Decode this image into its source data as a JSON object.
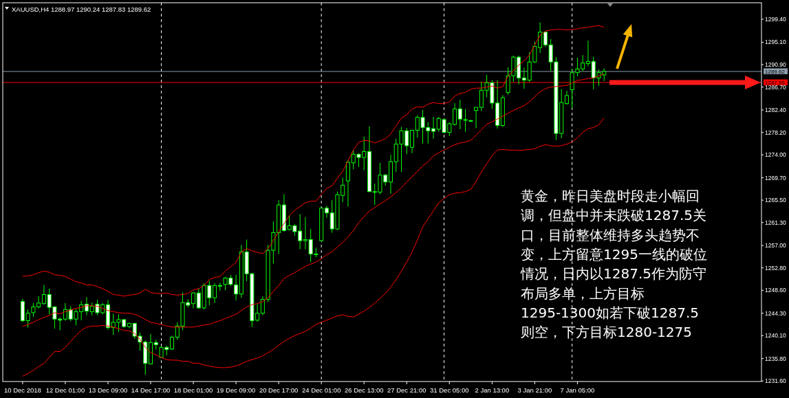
{
  "chart_data": {
    "type": "candlestick",
    "title": "XAUUSD,H4 1288.97 1290.24 1287.83 1289.62",
    "color": "#00ff00",
    "categories": [
      "10 Dec 2018",
      null,
      null,
      null,
      null,
      null,
      null,
      null,
      "12 Dec 01:00",
      null,
      null,
      null,
      null,
      null,
      null,
      null,
      "13 Dec 09:00",
      null,
      null,
      null,
      null,
      null,
      null,
      null,
      "14 Dec 17:00",
      null,
      null,
      null,
      null,
      null,
      null,
      null,
      "18 Dec 01:00",
      null,
      null,
      null,
      null,
      null,
      null,
      null,
      "19 Dec 09:00",
      null,
      null,
      null,
      null,
      null,
      null,
      null,
      "20 Dec 17:00",
      null,
      null,
      null,
      null,
      null,
      null,
      null,
      "24 Dec 01:00",
      null,
      null,
      null,
      null,
      null,
      null,
      null,
      "26 Dec 13:00",
      null,
      null,
      null,
      null,
      null,
      null,
      null,
      "27 Dec 21:00",
      null,
      null,
      null,
      null,
      null,
      null,
      null,
      "31 Dec 05:00",
      null,
      null,
      null,
      null,
      null,
      null,
      null,
      "2 Jan 13:00",
      null,
      null,
      null,
      null,
      null,
      null,
      null,
      "3 Jan 21:00",
      null,
      null,
      null,
      null,
      null,
      null,
      null,
      "7 Jan 05:00",
      null,
      null,
      null,
      null,
      null,
      null,
      null,
      null,
      null,
      null,
      null,
      null,
      null,
      null,
      null,
      null,
      null,
      null,
      null,
      null,
      null,
      null,
      null,
      null,
      null,
      null,
      null,
      null,
      null,
      null,
      null,
      null,
      null,
      null
    ],
    "ohlc": [
      [
        1246.5,
        1247.0,
        1242.6,
        1242.9
      ],
      [
        1242.9,
        1245.0,
        1241.6,
        1244.3
      ],
      [
        1244.4,
        1246.2,
        1243.6,
        1245.5
      ],
      [
        1245.5,
        1247.5,
        1245.2,
        1246.2
      ],
      [
        1246.1,
        1249.6,
        1245.9,
        1247.8
      ],
      [
        1247.8,
        1248.9,
        1244.1,
        1245.4
      ],
      [
        1245.5,
        1245.6,
        1241.4,
        1243.2
      ],
      [
        1243.2,
        1243.5,
        1241.1,
        1243.0
      ],
      [
        1243.2,
        1246.2,
        1242.9,
        1245.0
      ],
      [
        1245.0,
        1245.6,
        1242.8,
        1243.2
      ],
      [
        1243.2,
        1245.1,
        1242.0,
        1244.6
      ],
      [
        1244.6,
        1246.6,
        1243.0,
        1245.9
      ],
      [
        1246.0,
        1247.3,
        1243.9,
        1244.7
      ],
      [
        1244.6,
        1246.3,
        1243.9,
        1245.6
      ],
      [
        1246.0,
        1246.8,
        1243.9,
        1244.4
      ],
      [
        1244.4,
        1246.2,
        1244.1,
        1245.9
      ],
      [
        1245.9,
        1246.8,
        1241.2,
        1241.6
      ],
      [
        1241.6,
        1244.2,
        1240.2,
        1242.6
      ],
      [
        1242.6,
        1244.1,
        1240.8,
        1243.1
      ],
      [
        1243.1,
        1243.2,
        1241.6,
        1241.8
      ],
      [
        1241.8,
        1242.5,
        1241.5,
        1242.4
      ],
      [
        1242.4,
        1242.5,
        1239.5,
        1240.0
      ],
      [
        1240.0,
        1240.7,
        1237.3,
        1238.9
      ],
      [
        1238.9,
        1239.2,
        1232.8,
        1234.9
      ],
      [
        1234.8,
        1240.4,
        1234.7,
        1238.8
      ],
      [
        1238.8,
        1239.3,
        1237.5,
        1238.4
      ],
      [
        1236.0,
        1238.1,
        1236.0,
        1237.9
      ],
      [
        1237.9,
        1238.2,
        1236.4,
        1237.5
      ],
      [
        1237.6,
        1240.1,
        1237.4,
        1239.8
      ],
      [
        1239.8,
        1242.6,
        1239.3,
        1241.9
      ],
      [
        1241.9,
        1248.2,
        1241.1,
        1246.3
      ],
      [
        1246.3,
        1246.9,
        1245.4,
        1245.8
      ],
      [
        1246.1,
        1248.3,
        1245.2,
        1248.1
      ],
      [
        1248.1,
        1249.0,
        1245.1,
        1245.3
      ],
      [
        1245.3,
        1249.9,
        1245.0,
        1249.5
      ],
      [
        1249.5,
        1250.4,
        1245.8,
        1247.2
      ],
      [
        1247.2,
        1249.9,
        1246.2,
        1249.5
      ],
      [
        1249.5,
        1250.0,
        1248.5,
        1249.5
      ],
      [
        1249.7,
        1251.1,
        1248.6,
        1250.9
      ],
      [
        1250.9,
        1251.5,
        1249.4,
        1249.7
      ],
      [
        1249.6,
        1251.5,
        1246.7,
        1247.9
      ],
      [
        1247.9,
        1257.1,
        1247.2,
        1255.8
      ],
      [
        1255.8,
        1258.1,
        1250.3,
        1251.7
      ],
      [
        1251.7,
        1251.9,
        1241.7,
        1242.9
      ],
      [
        1243.0,
        1246.0,
        1242.7,
        1244.3
      ],
      [
        1244.3,
        1247.5,
        1243.9,
        1246.9
      ],
      [
        1246.9,
        1257.1,
        1246.4,
        1256.1
      ],
      [
        1256.1,
        1261.5,
        1253.6,
        1259.4
      ],
      [
        1259.4,
        1265.5,
        1255.4,
        1264.6
      ],
      [
        1264.6,
        1266.6,
        1259.6,
        1259.8
      ],
      [
        1260.0,
        1262.7,
        1259.8,
        1260.7
      ],
      [
        1260.7,
        1261.0,
        1258.8,
        1259.6
      ],
      [
        1259.7,
        1262.9,
        1256.3,
        1257.9
      ],
      [
        1257.9,
        1262.3,
        1256.3,
        1258.1
      ],
      [
        1258.1,
        1260.1,
        1253.9,
        1255.4
      ],
      [
        1255.4,
        1256.6,
        1254.8,
        1255.4
      ],
      [
        1257.9,
        1264.1,
        1257.8,
        1264.0
      ],
      [
        1264.0,
        1264.4,
        1262.2,
        1263.1
      ],
      [
        1263.1,
        1265.5,
        1259.4,
        1260.1
      ],
      [
        1260.1,
        1267.1,
        1259.9,
        1266.5
      ],
      [
        1266.4,
        1269.7,
        1265.1,
        1268.3
      ],
      [
        1269.1,
        1273.0,
        1264.3,
        1272.6
      ],
      [
        1272.5,
        1274.9,
        1271.3,
        1274.1
      ],
      [
        1274.1,
        1274.3,
        1271.7,
        1273.5
      ],
      [
        1273.5,
        1277.4,
        1271.1,
        1274.6
      ],
      [
        1274.6,
        1279.3,
        1267.0,
        1267.1
      ],
      [
        1267.1,
        1268.6,
        1264.6,
        1267.1
      ],
      [
        1267.0,
        1272.5,
        1266.6,
        1270.2
      ],
      [
        1270.2,
        1270.4,
        1268.2,
        1268.9
      ],
      [
        1268.9,
        1274.0,
        1266.7,
        1272.7
      ],
      [
        1272.7,
        1277.0,
        1270.8,
        1276.0
      ],
      [
        1276.0,
        1279.2,
        1270.8,
        1278.5
      ],
      [
        1278.5,
        1279.0,
        1274.1,
        1275.7
      ],
      [
        1275.4,
        1278.7,
        1274.3,
        1278.6
      ],
      [
        1278.6,
        1281.4,
        1277.2,
        1281.0
      ],
      [
        1281.0,
        1282.4,
        1276.1,
        1279.1
      ],
      [
        1279.1,
        1280.1,
        1276.1,
        1278.5
      ],
      [
        1278.9,
        1281.1,
        1277.0,
        1278.4
      ],
      [
        1278.8,
        1281.1,
        1278.3,
        1280.8
      ],
      [
        1280.6,
        1280.8,
        1278.0,
        1278.2
      ],
      [
        1278.2,
        1280.1,
        1277.5,
        1279.8
      ],
      [
        1279.7,
        1283.7,
        1279.5,
        1282.6
      ],
      [
        1282.6,
        1284.3,
        1278.8,
        1280.7
      ],
      [
        1280.6,
        1282.6,
        1278.3,
        1280.6
      ],
      [
        1280.4,
        1280.6,
        1280.2,
        1280.4
      ],
      [
        1282.3,
        1282.9,
        1279.0,
        1282.9
      ],
      [
        1282.9,
        1287.7,
        1282.2,
        1286.1
      ],
      [
        1286.1,
        1289.0,
        1284.8,
        1287.5
      ],
      [
        1287.5,
        1288.0,
        1282.6,
        1283.7
      ],
      [
        1283.7,
        1288.0,
        1278.9,
        1279.5
      ],
      [
        1279.5,
        1285.2,
        1279.2,
        1284.7
      ],
      [
        1285.7,
        1290.4,
        1285.3,
        1288.8
      ],
      [
        1288.8,
        1292.6,
        1287.7,
        1292.3
      ],
      [
        1292.3,
        1292.6,
        1287.2,
        1288.4
      ],
      [
        1288.4,
        1290.3,
        1286.4,
        1288.0
      ],
      [
        1288.0,
        1293.2,
        1287.7,
        1291.4
      ],
      [
        1291.4,
        1295.2,
        1291.2,
        1294.3
      ],
      [
        1294.1,
        1298.8,
        1293.1,
        1297.0
      ],
      [
        1297.0,
        1297.0,
        1294.2,
        1294.6
      ],
      [
        1294.6,
        1295.7,
        1289.7,
        1291.4
      ],
      [
        1291.4,
        1292.3,
        1276.8,
        1278.0
      ],
      [
        1278.0,
        1286.3,
        1277.1,
        1283.8
      ],
      [
        1283.6,
        1286.0,
        1283.4,
        1285.1
      ],
      [
        1286.2,
        1290.1,
        1282.7,
        1289.4
      ],
      [
        1289.4,
        1292.2,
        1288.7,
        1290.1
      ],
      [
        1290.1,
        1292.7,
        1289.7,
        1291.2
      ],
      [
        1291.1,
        1295.4,
        1290.6,
        1291.5
      ],
      [
        1291.5,
        1292.4,
        1286.3,
        1288.4
      ],
      [
        1288.4,
        1290.0,
        1286.9,
        1289.4
      ],
      [
        1288.97,
        1290.24,
        1287.83,
        1289.62
      ],
      null,
      null,
      null,
      null,
      null,
      null,
      null,
      null,
      null,
      null,
      null,
      null,
      null,
      null,
      null,
      null,
      null,
      null,
      null,
      null,
      null,
      null,
      null,
      null,
      null,
      null,
      null,
      null,
      null
    ],
    "series": [
      {
        "type": "line",
        "color": "#ff0000",
        "values": [
          1251.2,
          1251.3,
          1251.5,
          1251.9,
          1252.2,
          1252.0,
          1251.5,
          1251.4,
          1251.2,
          1250.7,
          1250.2,
          1250.0,
          1249.6,
          1249.6,
          1249.3,
          1248.9,
          1248.4,
          1247.8,
          1247.7,
          1247.5,
          1247.7,
          1247.8,
          1248.1,
          1248.8,
          1248.2,
          1248.0,
          1248.0,
          1248.1,
          1247.8,
          1247.7,
          1247.8,
          1248.0,
          1248.7,
          1248.9,
          1249.5,
          1250.6,
          1251.0,
          1251.2,
          1252.2,
          1253.0,
          1253.8,
          1255.8,
          1256.4,
          1256.0,
          1255.7,
          1255.5,
          1256.4,
          1257.9,
          1259.6,
          1261.1,
          1262.6,
          1263.6,
          1264.3,
          1265.0,
          1265.3,
          1265.3,
          1266.6,
          1267.7,
          1268.2,
          1269.6,
          1270.9,
          1272.9,
          1274.9,
          1276.3,
          1276.7,
          1276.6,
          1276.2,
          1276.6,
          1277.0,
          1277.9,
          1279.4,
          1280.9,
          1281.5,
          1282.6,
          1283.0,
          1282.9,
          1283.5,
          1283.8,
          1283.6,
          1283.6,
          1283.9,
          1285.0,
          1285.5,
          1285.7,
          1286.3,
          1286.5,
          1286.5,
          1286.7,
          1286.9,
          1286.5,
          1286.8,
          1288.8,
          1289.7,
          1290.8,
          1291.6,
          1292.7,
          1294.6,
          1296.4,
          1297.2,
          1297.4,
          1297.5,
          1297.5,
          1297.4,
          1297.5,
          1297.6,
          1297.8,
          1297.9,
          1298.1,
          1298.2,
          1297.9,
          null,
          null,
          null,
          null,
          null,
          null,
          null,
          null,
          null,
          null,
          null,
          null,
          null,
          null,
          null,
          null,
          null,
          null,
          null,
          null,
          null,
          null,
          null,
          null,
          null,
          null,
          null,
          null,
          null
        ]
      },
      {
        "type": "line",
        "color": "#ff0000",
        "values": [
          1241.8,
          1242.2,
          1242.6,
          1243.1,
          1243.5,
          1243.9,
          1244.4,
          1244.2,
          1244.6,
          1244.9,
          1245.2,
          1245.4,
          1245.7,
          1245.7,
          1245.6,
          1245.2,
          1244.8,
          1244.6,
          1244.4,
          1244.3,
          1244.3,
          1244.1,
          1243.7,
          1243.1,
          1242.6,
          1242.4,
          1242.2,
          1241.9,
          1241.7,
          1241.7,
          1241.7,
          1241.7,
          1241.7,
          1241.9,
          1242.1,
          1242.2,
          1242.6,
          1242.9,
          1243.3,
          1243.7,
          1244.1,
          1244.8,
          1245.5,
          1245.9,
          1246.1,
          1246.5,
          1247.2,
          1248.4,
          1249.5,
          1250.8,
          1251.4,
          1251.9,
          1252.5,
          1253.1,
          1253.5,
          1253.9,
          1254.5,
          1255.3,
          1255.8,
          1256.7,
          1257.6,
          1258.6,
          1259.8,
          1261.3,
          1262.4,
          1263.5,
          1264.1,
          1264.8,
          1265.4,
          1266.1,
          1266.9,
          1267.8,
          1268.9,
          1269.9,
          1270.9,
          1271.9,
          1272.7,
          1273.8,
          1274.4,
          1274.9,
          1275.4,
          1275.9,
          1276.2,
          1276.4,
          1276.7,
          1277.7,
          1278.7,
          1279.7,
          1280.2,
          1280.7,
          1281.2,
          1281.8,
          1282.3,
          1282.8,
          1283.2,
          1283.9,
          1284.9,
          1285.8,
          1286.4,
          1286.7,
          1286.8,
          1286.9,
          1287.0,
          1287.5,
          1287.9,
          1288.1,
          1288.3,
          1288.4,
          1288.8,
          1289.2,
          null,
          null,
          null,
          null,
          null,
          null,
          null,
          null,
          null,
          null,
          null,
          null,
          null,
          null,
          null,
          null,
          null,
          null,
          null,
          null,
          null,
          null,
          null,
          null,
          null,
          null,
          null,
          null,
          null
        ]
      },
      {
        "type": "line",
        "color": "#ff0000",
        "values": [
          1232.5,
          1233.0,
          1233.6,
          1234.3,
          1234.9,
          1236.0,
          1237.1,
          1237.1,
          1237.9,
          1239.0,
          1240.1,
          1241.1,
          1241.7,
          1241.9,
          1241.9,
          1242.0,
          1241.9,
          1241.7,
          1241.4,
          1241.1,
          1241.0,
          1240.5,
          1239.4,
          1237.9,
          1236.9,
          1236.5,
          1236.0,
          1235.6,
          1235.5,
          1235.5,
          1235.3,
          1235.3,
          1234.9,
          1234.9,
          1234.6,
          1234.4,
          1234.2,
          1234.1,
          1234.1,
          1234.2,
          1234.4,
          1234.8,
          1235.3,
          1235.6,
          1235.9,
          1236.3,
          1236.9,
          1237.5,
          1238.3,
          1239.0,
          1239.6,
          1240.1,
          1240.5,
          1240.9,
          1241.5,
          1242.2,
          1242.6,
          1243.0,
          1243.4,
          1243.8,
          1244.0,
          1243.7,
          1243.6,
          1244.1,
          1244.7,
          1245.4,
          1246.2,
          1247.1,
          1248.0,
          1249.2,
          1250.6,
          1252.2,
          1253.9,
          1255.8,
          1258.0,
          1260.5,
          1262.0,
          1263.5,
          1265.0,
          1265.8,
          1266.5,
          1266.8,
          1266.9,
          1267.1,
          1267.5,
          1269.0,
          1270.8,
          1272.3,
          1273.8,
          1274.9,
          1275.0,
          1274.9,
          1274.9,
          1274.8,
          1274.9,
          1275.0,
          1275.1,
          1275.6,
          1275.9,
          1275.7,
          1275.6,
          1275.7,
          1276.0,
          1276.4,
          1277.2,
          1278.2,
          1278.9,
          1279.1,
          1279.6,
          1280.9,
          null,
          null,
          null,
          null,
          null,
          null,
          null,
          null,
          null,
          null,
          null,
          null,
          null,
          null,
          null,
          null,
          null,
          null,
          null,
          null,
          null,
          null,
          null,
          null,
          null,
          null,
          null,
          null,
          null
        ]
      }
    ],
    "ylim": [
      1231.5,
      1302.5
    ],
    "yticks": [
      {
        "value": 1231.6,
        "label": "1231.60"
      },
      {
        "value": 1235.8,
        "label": "1235.80"
      },
      {
        "value": 1240.1,
        "label": "1240.10"
      },
      {
        "value": 1244.3,
        "label": "1244.30"
      },
      {
        "value": 1248.6,
        "label": "1248.60"
      },
      {
        "value": 1252.8,
        "label": "1252.80"
      },
      {
        "value": 1257.0,
        "label": "1257.00"
      },
      {
        "value": 1261.3,
        "label": "1261.30"
      },
      {
        "value": 1265.5,
        "label": "1265.50"
      },
      {
        "value": 1269.7,
        "label": "1269.70"
      },
      {
        "value": 1274.0,
        "label": "1274.00"
      },
      {
        "value": 1278.2,
        "label": "1278.20"
      },
      {
        "value": 1282.4,
        "label": "1282.40"
      },
      {
        "value": 1286.7,
        "label": "1286.70"
      },
      {
        "value": 1290.9,
        "label": "1290.90"
      },
      {
        "value": 1295.1,
        "label": "1295.10"
      },
      {
        "value": 1299.4,
        "label": "1299.40"
      }
    ],
    "ref_lines": [
      {
        "axis": "y",
        "value": 1289.62,
        "label": "1289.62",
        "color": "#8c9cab"
      },
      {
        "axis": "y",
        "value": 1287.55,
        "label": "1287.55",
        "color": "#ff0000"
      }
    ],
    "annotations": [
      "黄金，昨日美盘时段走小幅回调，但盘中并未跌破1287.5关口，目前整体维持多头趋势不变，上方留意1295一线的破位情况，日内以1287.5作为防守布局多单，上方目标1295-1300如若下破1287.5则空，下方目标1280-1275"
    ]
  }
}
